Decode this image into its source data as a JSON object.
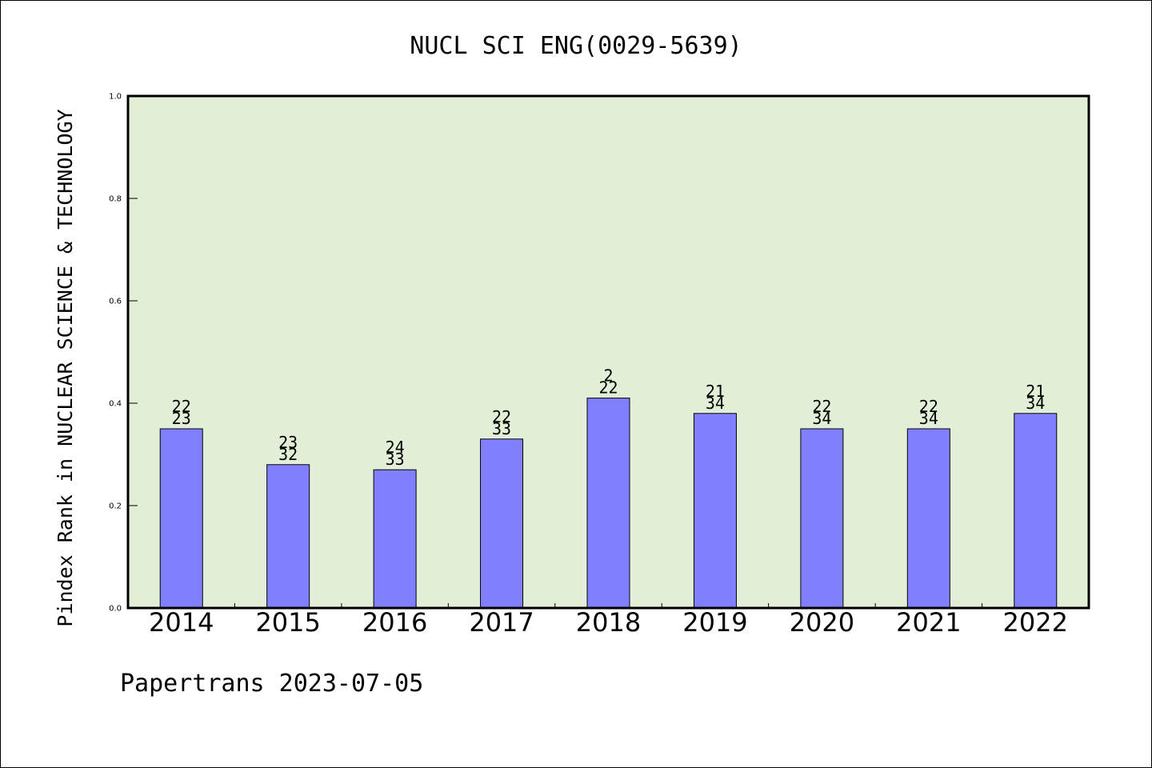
{
  "chart_data": {
    "type": "bar",
    "title": "NUCL SCI ENG(0029-5639)",
    "ylabel": "Pindex Rank in NUCLEAR SCIENCE & TECHNOLOGY",
    "xlabel": "",
    "ylim": [
      0,
      1.0
    ],
    "yticks": [
      "0.0",
      "0.2",
      "0.4",
      "0.6",
      "0.8",
      "1.0"
    ],
    "grid": false,
    "categories": [
      "2014",
      "2015",
      "2016",
      "2017",
      "2018",
      "2019",
      "2020",
      "2021",
      "2022"
    ],
    "values": [
      0.35,
      0.28,
      0.27,
      0.33,
      0.41,
      0.38,
      0.35,
      0.35,
      0.38
    ],
    "rank_labels": [
      {
        "rank": "22",
        "total": "23"
      },
      {
        "rank": "23",
        "total": "32"
      },
      {
        "rank": "24",
        "total": "33"
      },
      {
        "rank": "22",
        "total": "33"
      },
      {
        "rank": "2",
        "total": "22"
      },
      {
        "rank": "21",
        "total": "34"
      },
      {
        "rank": "22",
        "total": "34"
      },
      {
        "rank": "22",
        "total": "34"
      },
      {
        "rank": "21",
        "total": "34"
      }
    ],
    "colors": {
      "plot_background": "#e2efd6",
      "bar_fill": "#8080ff",
      "bar_stroke": "#000000"
    }
  },
  "footer": {
    "credit": "Papertrans 2023-07-05"
  }
}
